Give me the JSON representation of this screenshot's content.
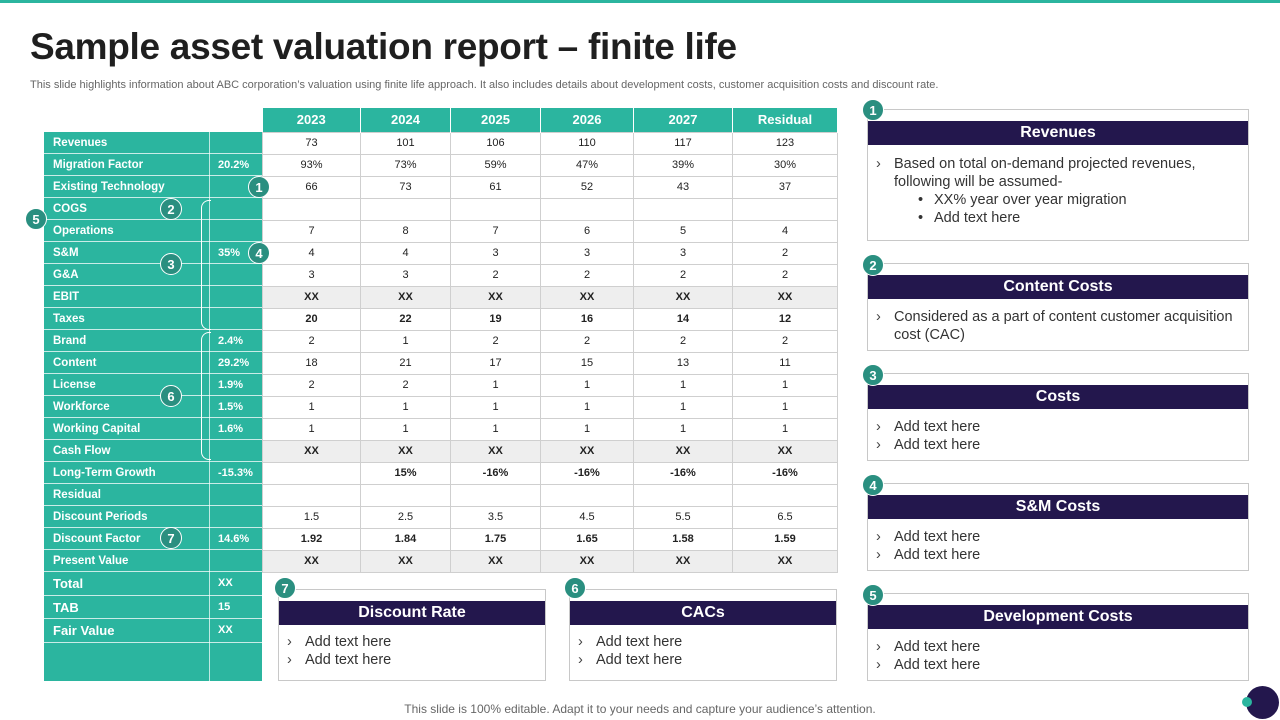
{
  "title": "Sample asset valuation report – finite life",
  "subtitle": "This slide highlights information about ABC corporation’s valuation using finite life approach. It also includes details about development costs, customer acquisition costs and discount rate.",
  "footer": "This slide is 100% editable. Adapt it to your needs and capture your audience’s attention.",
  "table": {
    "headers": [
      "2023",
      "2024",
      "2025",
      "2026",
      "2027",
      "Residual"
    ],
    "rows": [
      {
        "label": "Revenues",
        "pct": "",
        "values": [
          "73",
          "101",
          "106",
          "110",
          "117",
          "123"
        ]
      },
      {
        "label": "Migration Factor",
        "pct": "20.2%",
        "values": [
          "93%",
          "73%",
          "59%",
          "47%",
          "39%",
          "30%"
        ]
      },
      {
        "label": "Existing Technology",
        "pct": "",
        "values": [
          "66",
          "73",
          "61",
          "52",
          "43",
          "37"
        ]
      },
      {
        "label": "COGS",
        "pct": "",
        "values": [
          "",
          "",
          "",
          "",
          "",
          ""
        ]
      },
      {
        "label": "Operations",
        "pct": "",
        "values": [
          "7",
          "8",
          "7",
          "6",
          "5",
          "4"
        ]
      },
      {
        "label": "S&M",
        "pct": "35%",
        "values": [
          "4",
          "4",
          "3",
          "3",
          "3",
          "2"
        ]
      },
      {
        "label": "G&A",
        "pct": "",
        "values": [
          "3",
          "3",
          "2",
          "2",
          "2",
          "2"
        ]
      },
      {
        "label": "EBIT",
        "pct": "",
        "values": [
          "XX",
          "XX",
          "XX",
          "XX",
          "XX",
          "XX"
        ]
      },
      {
        "label": "Taxes",
        "pct": "",
        "values": [
          "20",
          "22",
          "19",
          "16",
          "14",
          "12"
        ]
      },
      {
        "label": "Brand",
        "pct": "2.4%",
        "values": [
          "2",
          "1",
          "2",
          "2",
          "2",
          "2"
        ]
      },
      {
        "label": "Content",
        "pct": "29.2%",
        "values": [
          "18",
          "21",
          "17",
          "15",
          "13",
          "11"
        ]
      },
      {
        "label": "License",
        "pct": "1.9%",
        "values": [
          "2",
          "2",
          "1",
          "1",
          "1",
          "1"
        ]
      },
      {
        "label": "Workforce",
        "pct": "1.5%",
        "values": [
          "1",
          "1",
          "1",
          "1",
          "1",
          "1"
        ]
      },
      {
        "label": "Working Capital",
        "pct": "1.6%",
        "values": [
          "1",
          "1",
          "1",
          "1",
          "1",
          "1"
        ]
      },
      {
        "label": "Cash Flow",
        "pct": "",
        "values": [
          "XX",
          "XX",
          "XX",
          "XX",
          "XX",
          "XX"
        ]
      },
      {
        "label": "Long-Term Growth",
        "pct": "-15.3%",
        "values": [
          "",
          "15%",
          "-16%",
          "-16%",
          "-16%",
          "-16%"
        ]
      },
      {
        "label": "Residual",
        "pct": "",
        "values": [
          "",
          "",
          "",
          "",
          "",
          ""
        ]
      },
      {
        "label": "Discount Periods",
        "pct": "",
        "values": [
          "1.5",
          "2.5",
          "3.5",
          "4.5",
          "5.5",
          "6.5"
        ]
      },
      {
        "label": "Discount Factor",
        "pct": "14.6%",
        "values": [
          "1.92",
          "1.84",
          "1.75",
          "1.65",
          "1.58",
          "1.59"
        ]
      },
      {
        "label": "Present Value",
        "pct": "",
        "values": [
          "XX",
          "XX",
          "XX",
          "XX",
          "XX",
          "XX"
        ]
      }
    ],
    "summary": [
      {
        "label": "Total",
        "value": "XX"
      },
      {
        "label": "TAB",
        "value": "15"
      },
      {
        "label": "Fair Value",
        "value": "XX"
      }
    ]
  },
  "badges": {
    "b1": "1",
    "b2": "2",
    "b3": "3",
    "b4": "4",
    "b5": "5",
    "b6": "6",
    "b7": "7"
  },
  "cards": {
    "revenues": {
      "num": "1",
      "title": "Revenues",
      "line1": "Based on total on-demand projected revenues, following will be assumed-",
      "sub1": "XX% year over year migration",
      "sub2": "Add text here"
    },
    "content": {
      "num": "2",
      "title": "Content Costs",
      "line1": "Considered as a part of content customer acquisition cost (CAC)"
    },
    "costs": {
      "num": "3",
      "title": "Costs",
      "line1": "Add text here",
      "line2": "Add text here"
    },
    "sm": {
      "num": "4",
      "title": "S&M Costs",
      "line1": "Add text here",
      "line2": "Add text here"
    },
    "dev": {
      "num": "5",
      "title": "Development Costs",
      "line1": "Add text here",
      "line2": "Add text here"
    },
    "discount": {
      "num": "7",
      "title": "Discount Rate",
      "line1": "Add text here",
      "line2": "Add text here"
    },
    "cacs": {
      "num": "6",
      "title": "CACs",
      "line1": "Add text here",
      "line2": "Add text here"
    }
  },
  "colors": {
    "teal": "#2bb59f",
    "dark_teal": "#2a8f80",
    "navy": "#23174d",
    "shade": "#eeeeee"
  }
}
